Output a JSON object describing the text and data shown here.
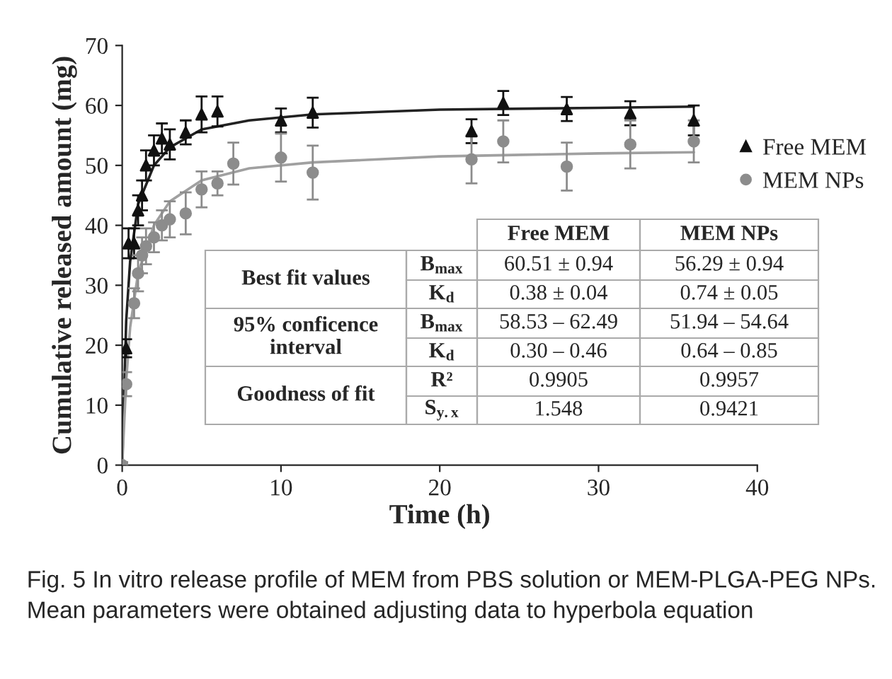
{
  "chart_data": {
    "type": "scatter",
    "xlabel": "Time (h)",
    "ylabel": "Cumulative released amount (mg)",
    "xlim": [
      0,
      40
    ],
    "xticks": [
      0,
      10,
      20,
      30,
      40
    ],
    "ylim": [
      0,
      70
    ],
    "yticks": [
      0,
      10,
      20,
      30,
      40,
      50,
      60,
      70
    ],
    "grid": false,
    "legend": "top right",
    "series": [
      {
        "name": "Free MEM",
        "marker": "triangle",
        "color": "#111111",
        "x": [
          0,
          0.25,
          0.4,
          0.75,
          1,
          1.25,
          1.5,
          2,
          2.5,
          3,
          4,
          5,
          6,
          10,
          12,
          22,
          24,
          28,
          32,
          36
        ],
        "values": [
          0,
          19.5,
          37,
          37,
          42.5,
          45,
          50,
          52.5,
          54.5,
          53.5,
          55.5,
          58.5,
          59,
          57.5,
          58.8,
          55.7,
          60.4,
          59.4,
          58.7,
          57.5
        ],
        "errors": [
          0.5,
          1.5,
          2.5,
          2.5,
          2.5,
          2.5,
          2.5,
          2.5,
          2.5,
          2.5,
          2,
          3,
          2.5,
          2,
          2.5,
          2,
          2,
          2,
          2,
          2.5
        ]
      },
      {
        "name": "MEM NPs",
        "marker": "circle",
        "color": "#8c8c8c",
        "x": [
          0,
          0.25,
          0.75,
          1,
          1.25,
          1.5,
          2,
          2.5,
          3,
          4,
          5,
          6,
          7,
          10,
          12,
          22,
          24,
          28,
          32,
          36
        ],
        "values": [
          0,
          13.5,
          27,
          32,
          35,
          36.5,
          38,
          40,
          41,
          42,
          46,
          47,
          50.3,
          51.3,
          48.8,
          51,
          54,
          49.8,
          53.5,
          54
        ],
        "errors": [
          0.5,
          2,
          2.5,
          3,
          3,
          3,
          2.5,
          2.5,
          3,
          3.5,
          3,
          2,
          3.5,
          4,
          4.5,
          4,
          3.5,
          4,
          4,
          3.5
        ]
      },
      {
        "type": "line",
        "marker": "none",
        "color": "#222222",
        "x": [
          0,
          0.25,
          0.5,
          1,
          2,
          3,
          5,
          8,
          12,
          20,
          30,
          36
        ],
        "values": [
          0,
          24,
          34,
          43.5,
          50,
          53,
          56,
          57.5,
          58.5,
          59.3,
          59.6,
          59.8
        ]
      },
      {
        "type": "line",
        "marker": "none",
        "color": "#a0a0a0",
        "x": [
          0,
          0.25,
          0.5,
          1,
          2,
          3,
          5,
          8,
          12,
          20,
          30,
          36
        ],
        "values": [
          0,
          14,
          23,
          32,
          40,
          44,
          47.5,
          49.5,
          50.5,
          51.5,
          52,
          52.2
        ]
      }
    ],
    "annotations": [
      "Free MEM",
      "MEM NPs",
      "Best fit values",
      "95% conficence interval",
      "Goodness of fit",
      "B$_{max}$",
      "K$_{d}$",
      "B$_{max}$",
      "K$_{d}$",
      "R²",
      "S$_{y.x}$",
      "60.51 ± 0.94",
      "56.29 ± 0.94",
      "0.38 ± 0.04",
      "0.74 ± 0.05",
      "58.53 – 62.49",
      "51.94 – 54.64",
      "0.30 – 0.46",
      "0.64 – 0.85",
      "0.9905",
      "0.9957",
      "1.548",
      "0.9421",
      "Fig. 5 In vitro release profile of MEM from PBS solution or MEM-PLGA-PEG NPs. Mean parameters were obtained adjusting data to hyperbola equation"
    ]
  }
}
